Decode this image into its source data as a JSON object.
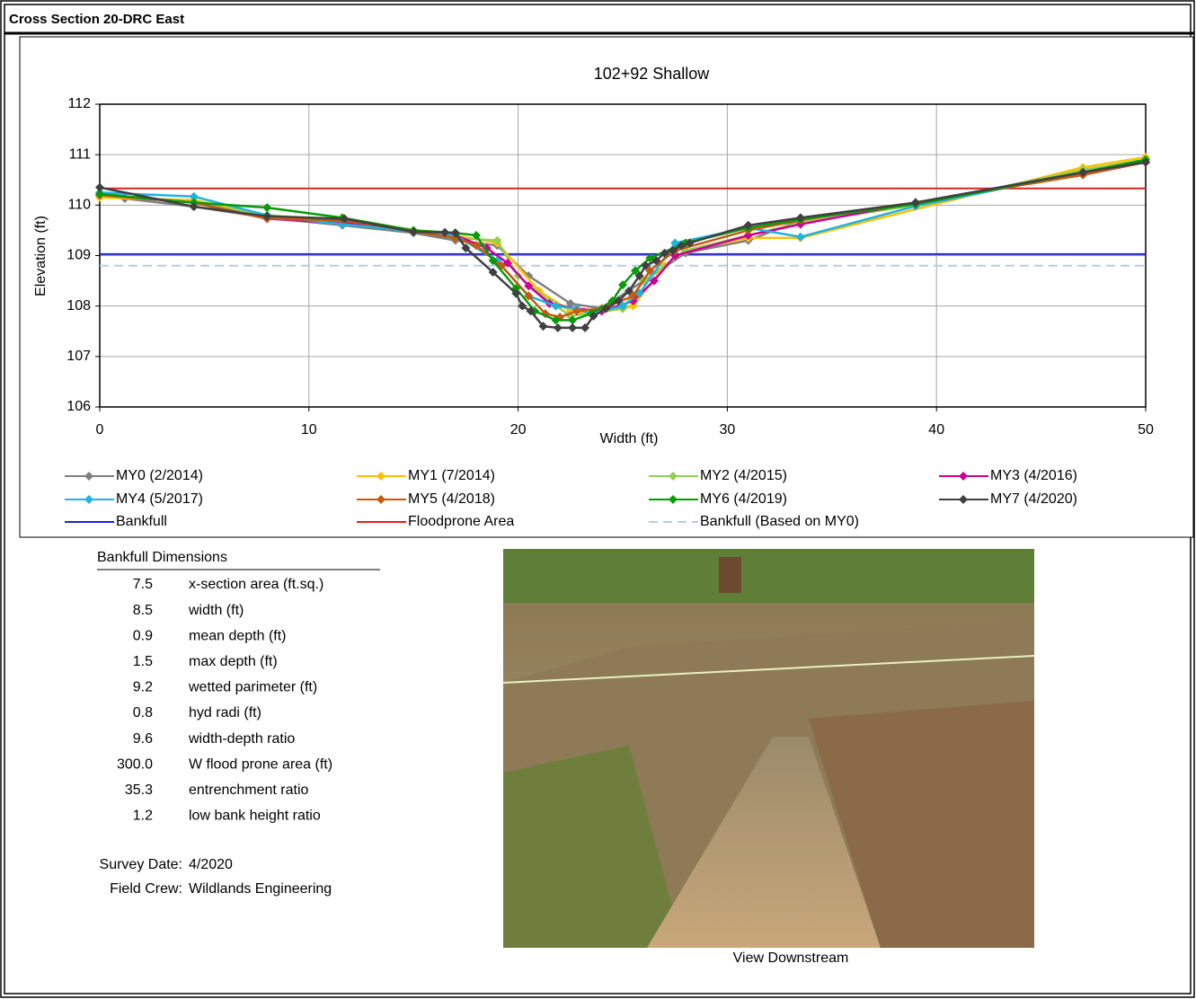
{
  "header": {
    "title": "Cross Section  20-DRC East"
  },
  "chart_data": {
    "type": "line",
    "title": "102+92 Shallow",
    "x_label": "Width (ft)",
    "y_label": "Elevation (ft)",
    "xlim": [
      0,
      50
    ],
    "xticks": [
      0,
      10,
      20,
      30,
      40,
      50
    ],
    "ylim": [
      106,
      112
    ],
    "yticks": [
      106,
      107,
      108,
      109,
      110,
      111,
      112
    ],
    "grid": true,
    "series": [
      {
        "name": "MY0 (2/2014)",
        "color": "#808080",
        "marker": true,
        "x": [
          0,
          1.2,
          4.5,
          8,
          11.6,
          15,
          17,
          19,
          20.5,
          22.5,
          24,
          26,
          28,
          31,
          33.5,
          39,
          47,
          50
        ],
        "values": [
          110.25,
          110.13,
          109.97,
          109.75,
          109.6,
          109.45,
          109.3,
          109.2,
          108.6,
          108.05,
          107.95,
          108.5,
          109.05,
          109.3,
          109.7,
          110.05,
          110.65,
          110.85
        ]
      },
      {
        "name": "MY1 (7/2014)",
        "color": "#ffc000",
        "marker": true,
        "x": [
          0,
          4.5,
          8,
          11.6,
          17,
          19,
          21,
          22.5,
          23.5,
          25,
          25.5,
          27,
          28,
          31,
          33.5,
          47,
          50
        ],
        "values": [
          110.15,
          110.1,
          109.8,
          109.7,
          109.4,
          109.25,
          108.3,
          107.9,
          107.85,
          107.95,
          108.0,
          108.8,
          109.1,
          109.35,
          109.35,
          110.75,
          110.95
        ]
      },
      {
        "name": "MY2 (4/2015)",
        "color": "#92d050",
        "marker": true,
        "x": [
          0,
          4.5,
          8,
          11.6,
          17,
          19,
          20,
          21.5,
          22.5,
          24,
          25,
          26,
          28,
          31,
          33.5,
          39,
          47,
          50
        ],
        "values": [
          110.2,
          110.05,
          109.8,
          109.7,
          109.35,
          109.3,
          108.6,
          108.1,
          107.8,
          107.9,
          107.95,
          108.5,
          109.1,
          109.4,
          109.65,
          110.0,
          110.7,
          110.9
        ]
      },
      {
        "name": "MY3 (4/2016)",
        "color": "#cc0099",
        "marker": true,
        "x": [
          0,
          4.5,
          8,
          11.6,
          17,
          18.5,
          19.5,
          20.5,
          21.5,
          22.8,
          24,
          25.5,
          26.5,
          27.5,
          31,
          33.5,
          39,
          47,
          50
        ],
        "values": [
          110.2,
          110.05,
          109.73,
          109.65,
          109.4,
          109.15,
          108.85,
          108.4,
          108.05,
          107.95,
          107.9,
          108.1,
          108.5,
          109.0,
          109.4,
          109.62,
          110.05,
          110.6,
          110.85
        ]
      },
      {
        "name": "MY4 (5/2017)",
        "color": "#1fb4e0",
        "marker": true,
        "x": [
          0,
          4.5,
          8,
          11.6,
          17,
          19,
          20.5,
          21.8,
          22.8,
          23.5,
          25,
          25.8,
          27.5,
          31,
          33.5,
          39,
          47,
          50
        ],
        "values": [
          110.25,
          110.17,
          109.8,
          109.62,
          109.4,
          108.9,
          108.2,
          108.0,
          107.95,
          107.85,
          108.0,
          108.25,
          109.25,
          109.55,
          109.37,
          109.98,
          110.65,
          110.9
        ]
      },
      {
        "name": "MY5 (4/2018)",
        "color": "#c55a11",
        "marker": true,
        "x": [
          0,
          4.5,
          8,
          11.6,
          17,
          18,
          19.2,
          20.5,
          21.3,
          22,
          22.8,
          24,
          25.5,
          26.3,
          27.5,
          31,
          33.5,
          39,
          47,
          50
        ],
        "values": [
          110.2,
          110.05,
          109.73,
          109.7,
          109.35,
          109.2,
          108.8,
          108.2,
          107.85,
          107.78,
          107.9,
          107.95,
          108.2,
          108.7,
          109.1,
          109.5,
          109.7,
          110.05,
          110.6,
          110.85
        ]
      },
      {
        "name": "MY6 (4/2019)",
        "color": "#079b07",
        "marker": true,
        "x": [
          0,
          4.5,
          8,
          11.6,
          15,
          17,
          18,
          18.8,
          19.9,
          20.8,
          21.8,
          22.6,
          23.5,
          24.5,
          25,
          25.6,
          26.3,
          28,
          31,
          33.5,
          39,
          47,
          50
        ],
        "values": [
          110.22,
          110.05,
          109.95,
          109.75,
          109.5,
          109.45,
          109.4,
          108.9,
          108.35,
          107.9,
          107.72,
          107.72,
          107.85,
          108.1,
          108.42,
          108.7,
          108.95,
          109.25,
          109.55,
          109.72,
          110.02,
          110.65,
          110.9
        ]
      },
      {
        "name": "MY7 (4/2020)",
        "color": "#404040",
        "marker": true,
        "x": [
          0,
          4.5,
          8,
          11.7,
          15,
          16.5,
          17,
          17.5,
          18.8,
          19.9,
          20.2,
          20.6,
          21.2,
          21.9,
          22.6,
          23.2,
          23.6,
          24.2,
          24.8,
          25.3,
          25.8,
          26.1,
          26.6,
          27,
          27.4,
          27.8,
          28.2,
          31,
          33.5,
          39,
          47,
          50
        ],
        "values": [
          110.35,
          109.97,
          109.78,
          109.73,
          109.47,
          109.46,
          109.45,
          109.15,
          108.67,
          108.25,
          108.0,
          107.9,
          107.6,
          107.57,
          107.57,
          107.57,
          107.8,
          107.95,
          108.1,
          108.3,
          108.6,
          108.8,
          108.9,
          109.05,
          109.1,
          109.2,
          109.25,
          109.6,
          109.75,
          110.05,
          110.65,
          110.85
        ]
      },
      {
        "name": "Bankfull",
        "color": "#2222cc",
        "marker": false,
        "x": [
          0,
          50
        ],
        "values": [
          109.03,
          109.03
        ]
      },
      {
        "name": "Floodprone Area",
        "color": "#e02020",
        "marker": false,
        "x": [
          0,
          50
        ],
        "values": [
          110.33,
          110.33
        ]
      },
      {
        "name": "Bankfull (Based on MY0)",
        "color": "#b8cce4",
        "marker": false,
        "dash": true,
        "x": [
          0,
          50
        ],
        "values": [
          108.8,
          108.8
        ]
      }
    ]
  },
  "bankfull_dimensions": {
    "title": "Bankfull Dimensions",
    "rows": [
      [
        "7.5",
        "x-section area (ft.sq.)"
      ],
      [
        "8.5",
        "width (ft)"
      ],
      [
        "0.9",
        "mean depth (ft)"
      ],
      [
        "1.5",
        "max depth (ft)"
      ],
      [
        "9.2",
        "wetted parimeter (ft)"
      ],
      [
        "0.8",
        "hyd radi (ft)"
      ],
      [
        "9.6",
        "width-depth ratio"
      ],
      [
        "300.0",
        "W flood prone area (ft)"
      ],
      [
        "35.3",
        "entrenchment ratio"
      ],
      [
        "1.2",
        "low bank height ratio"
      ]
    ]
  },
  "survey": {
    "rows": [
      [
        "Survey Date:",
        "4/2020"
      ],
      [
        "Field Crew:",
        "Wildlands Engineering"
      ]
    ]
  },
  "photo": {
    "caption": "View Downstream"
  }
}
